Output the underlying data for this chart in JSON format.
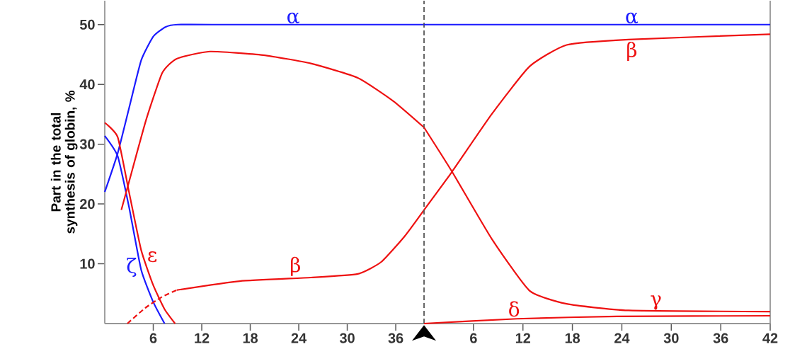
{
  "chart_data": [
    {
      "type": "line",
      "ylabel": "Part in the total synthesis of globin, %",
      "xlim": [
        0,
        39.5
      ],
      "ylim": [
        0,
        54
      ],
      "xticks": [
        6,
        12,
        18,
        24,
        30,
        36
      ],
      "yticks": [
        10,
        20,
        30,
        40,
        50
      ],
      "marker": "none",
      "series": [
        {
          "name": "α",
          "color": "#1a1aff",
          "x": [
            0,
            1.6,
            3,
            4.5,
            6,
            7.5,
            9,
            15,
            25,
            39.5
          ],
          "values": [
            22,
            28.5,
            36,
            44,
            48,
            49.6,
            50,
            50,
            50,
            50
          ]
        },
        {
          "name": "ζ",
          "color": "#1a1aff",
          "x": [
            0,
            1.6,
            3,
            4.5,
            6,
            7.4
          ],
          "values": [
            31.4,
            28,
            19.5,
            9,
            3.6,
            0
          ]
        },
        {
          "name": "ε",
          "color": "#ee1111",
          "x": [
            0,
            1.6,
            3,
            4.5,
            6,
            7.4,
            8.7
          ],
          "values": [
            33.6,
            31.2,
            22,
            12.3,
            6.4,
            2.4,
            0
          ]
        },
        {
          "color": "#ee1111",
          "x": [
            2.05,
            3,
            5.1,
            7.1,
            8.9,
            13,
            19.6,
            25.5,
            31.3,
            35.7,
            39.5
          ],
          "values": [
            19,
            23.7,
            34,
            41.9,
            44.3,
            45.5,
            44.9,
            43.5,
            41.1,
            37.2,
            32.8
          ]
        },
        {
          "color": "#ee1111",
          "line_style": "dashed",
          "x": [
            2.8,
            5,
            7,
            8.9
          ],
          "values": [
            0,
            2.6,
            4.4,
            5.6
          ]
        },
        {
          "name": "β",
          "color": "#ee1111",
          "x": [
            8.9,
            16.7,
            25.5,
            31.3,
            34.2,
            37.1,
            39.5
          ],
          "values": [
            5.6,
            7.1,
            7.7,
            8.3,
            10.3,
            14.6,
            19
          ]
        }
      ]
    },
    {
      "type": "line",
      "xlim": [
        0,
        42
      ],
      "ylim": [
        0,
        54
      ],
      "xticks": [
        6,
        12,
        18,
        24,
        30,
        36,
        42
      ],
      "tick_labels": "x",
      "marker": "none",
      "series": [
        {
          "name": "α",
          "color": "#1a1aff",
          "x": [
            0,
            10,
            20,
            30,
            42
          ],
          "values": [
            50,
            50,
            50,
            50,
            50
          ]
        },
        {
          "name": "β",
          "color": "#ee1111",
          "x": [
            0,
            3.4,
            8.2,
            12.8,
            17.3,
            24.8,
            42
          ],
          "values": [
            19,
            25.4,
            35,
            43,
            46.6,
            47.5,
            48.4
          ]
        },
        {
          "name": "γ",
          "color": "#ee1111",
          "x": [
            0,
            3.4,
            8.2,
            12.8,
            17.3,
            24.8,
            42
          ],
          "values": [
            32.8,
            25.4,
            14.2,
            5.5,
            3.3,
            2.2,
            2.0
          ]
        },
        {
          "name": "δ",
          "color": "#ee1111",
          "x": [
            0,
            11.3,
            23.4,
            42
          ],
          "values": [
            0,
            0.8,
            1.2,
            1.3
          ]
        }
      ],
      "ref_lines": [
        {
          "axis": "x",
          "value": 0,
          "color": "#555555",
          "line_style": "dashed"
        }
      ]
    }
  ]
}
